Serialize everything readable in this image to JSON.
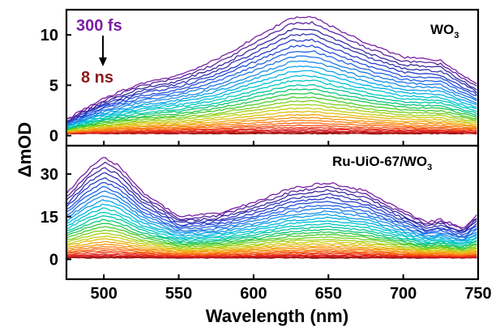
{
  "chart_data": [
    {
      "type": "line",
      "panel": "top",
      "label": "WO",
      "label_sub": "3",
      "annotation_start": "300 fs",
      "annotation_end": "8 ns",
      "annotation_start_color": "#7a1fa2",
      "annotation_end_color": "#8b1a1a",
      "x_range": [
        475,
        750
      ],
      "ylim": [
        -1,
        12.5
      ],
      "yticks": [
        0,
        5,
        10
      ],
      "num_traces": 32,
      "first_trace": {
        "x": [
          475,
          500,
          525,
          550,
          575,
          600,
          625,
          640,
          650,
          675,
          700,
          725,
          750
        ],
        "y": [
          1.6,
          3.7,
          5.2,
          6.0,
          7.5,
          9.6,
          11.7,
          11.8,
          11.0,
          9.2,
          7.8,
          7.5,
          5.0
        ]
      },
      "last_trace_level": 0.2,
      "colors": [
        "#7b1fa2",
        "#3a2a9a",
        "#2a3ac8",
        "#1f5ee6",
        "#1e88e5",
        "#00b0e8",
        "#00c9c9",
        "#00c48f",
        "#32c832",
        "#8cd21a",
        "#d7cc12",
        "#f2a20f",
        "#ff7a10",
        "#f24a14",
        "#e01e1e",
        "#b81616",
        "#7f1010"
      ]
    },
    {
      "type": "line",
      "panel": "bottom",
      "label": "Ru-UiO-67/WO",
      "label_sub": "3",
      "x_range": [
        475,
        750
      ],
      "ylim": [
        -7,
        40
      ],
      "yticks": [
        0,
        15,
        30
      ],
      "num_traces": 32,
      "first_trace": {
        "x": [
          475,
          490,
          500,
          510,
          525,
          550,
          575,
          600,
          625,
          650,
          675,
          700,
          715,
          725,
          740,
          750
        ],
        "y": [
          23,
          32,
          36,
          33,
          24,
          15,
          16,
          20,
          25,
          27,
          24,
          17,
          13,
          14,
          11,
          16
        ]
      },
      "last_trace_level": 0.5,
      "colors": [
        "#7b1fa2",
        "#3a2a9a",
        "#2a3ac8",
        "#1f5ee6",
        "#1e88e5",
        "#00b0e8",
        "#00c9c9",
        "#00c48f",
        "#32c832",
        "#8cd21a",
        "#d7cc12",
        "#f2a20f",
        "#ff7a10",
        "#f24a14",
        "#e01e1e",
        "#b81616",
        "#7f1010"
      ]
    }
  ],
  "axes": {
    "xlabel": "Wavelength (nm)",
    "ylabel": "ΔmOD",
    "xticks": [
      500,
      550,
      600,
      650,
      700,
      750
    ],
    "xlim": [
      475,
      750
    ]
  }
}
